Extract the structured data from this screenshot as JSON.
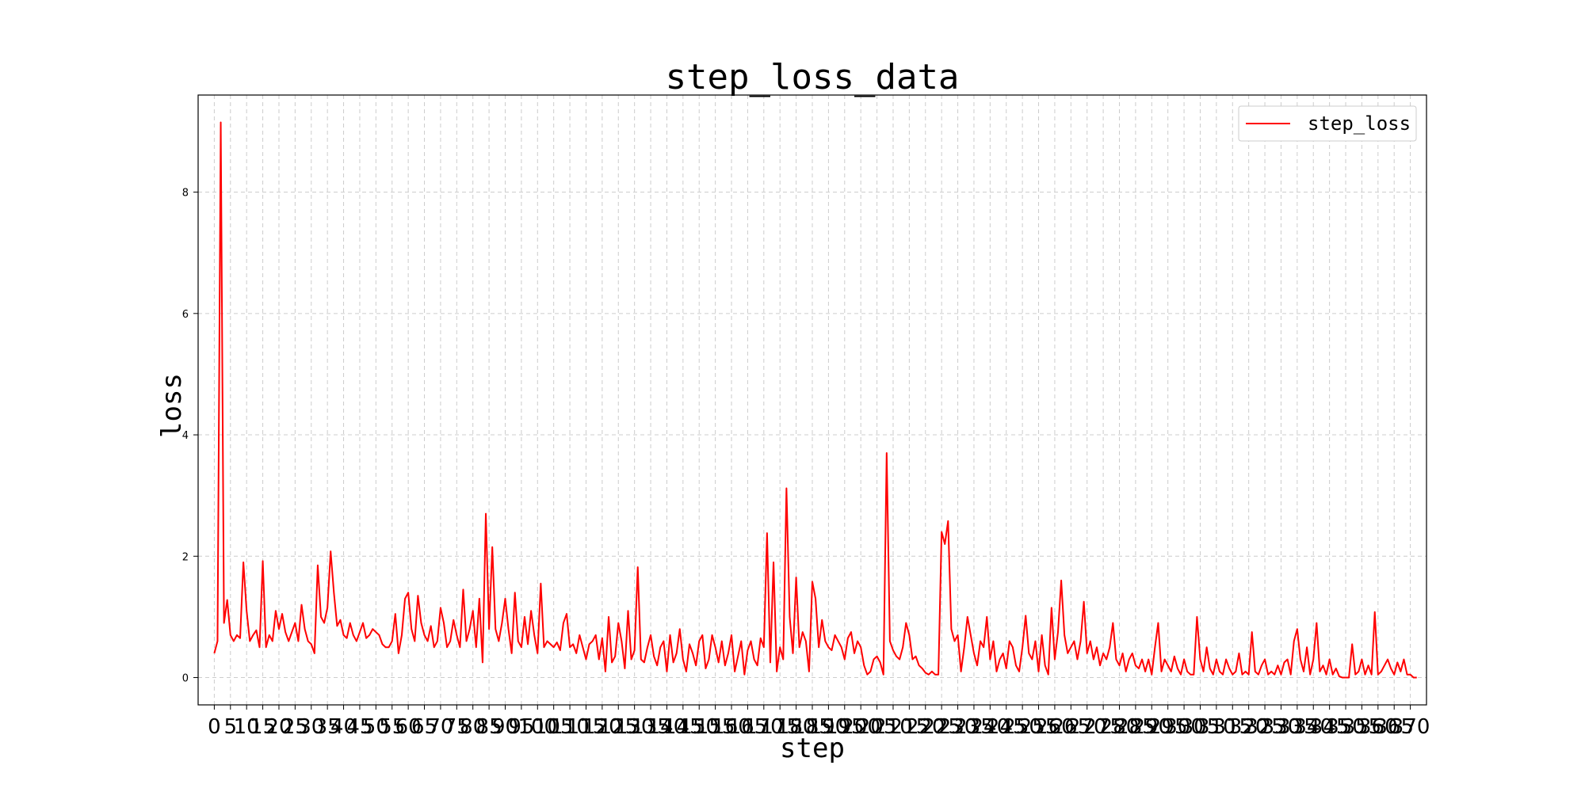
{
  "chart_data": {
    "type": "line",
    "title": "step_loss_data",
    "xlabel": "step",
    "ylabel": "loss",
    "xlim": [
      -5,
      375
    ],
    "ylim": [
      -0.45,
      9.6
    ],
    "yticks": [
      0,
      2,
      4,
      6,
      8
    ],
    "x_tick_step": 5,
    "x_tick_max": 370,
    "grid": true,
    "legend_position": "top-right",
    "colors": {
      "series": "#ff0000",
      "grid": "#cccccc",
      "axes": "#000000"
    },
    "series": [
      {
        "name": "step_loss",
        "values": [
          0.4,
          0.6,
          9.15,
          0.9,
          1.28,
          0.7,
          0.6,
          0.7,
          0.65,
          1.9,
          1.1,
          0.6,
          0.7,
          0.78,
          0.5,
          1.92,
          0.5,
          0.7,
          0.6,
          1.1,
          0.8,
          1.05,
          0.75,
          0.6,
          0.75,
          0.9,
          0.6,
          1.2,
          0.8,
          0.6,
          0.55,
          0.4,
          1.85,
          1.0,
          0.9,
          1.15,
          2.08,
          1.4,
          0.85,
          0.95,
          0.7,
          0.65,
          0.9,
          0.7,
          0.6,
          0.75,
          0.9,
          0.65,
          0.7,
          0.8,
          0.75,
          0.7,
          0.55,
          0.5,
          0.5,
          0.6,
          1.05,
          0.4,
          0.7,
          1.3,
          1.4,
          0.8,
          0.6,
          1.35,
          0.9,
          0.7,
          0.6,
          0.85,
          0.5,
          0.6,
          1.15,
          0.9,
          0.5,
          0.6,
          0.95,
          0.7,
          0.5,
          1.45,
          0.6,
          0.8,
          1.1,
          0.5,
          1.3,
          0.25,
          2.7,
          0.8,
          2.15,
          0.8,
          0.6,
          0.9,
          1.3,
          0.8,
          0.4,
          1.4,
          0.6,
          0.5,
          1.0,
          0.55,
          1.1,
          0.7,
          0.4,
          1.55,
          0.5,
          0.6,
          0.55,
          0.5,
          0.58,
          0.45,
          0.9,
          1.05,
          0.5,
          0.55,
          0.4,
          0.7,
          0.5,
          0.3,
          0.55,
          0.6,
          0.7,
          0.3,
          0.65,
          0.1,
          1.0,
          0.25,
          0.35,
          0.9,
          0.6,
          0.15,
          1.1,
          0.3,
          0.45,
          1.82,
          0.3,
          0.25,
          0.5,
          0.7,
          0.35,
          0.2,
          0.5,
          0.6,
          0.1,
          0.7,
          0.25,
          0.4,
          0.8,
          0.3,
          0.1,
          0.55,
          0.4,
          0.2,
          0.6,
          0.7,
          0.15,
          0.3,
          0.7,
          0.5,
          0.25,
          0.6,
          0.2,
          0.4,
          0.7,
          0.1,
          0.35,
          0.6,
          0.05,
          0.45,
          0.6,
          0.3,
          0.2,
          0.65,
          0.5,
          2.38,
          0.25,
          1.9,
          0.1,
          0.5,
          0.3,
          3.12,
          1.0,
          0.4,
          1.65,
          0.5,
          0.75,
          0.6,
          0.1,
          1.58,
          1.3,
          0.5,
          0.95,
          0.6,
          0.5,
          0.45,
          0.7,
          0.6,
          0.5,
          0.3,
          0.65,
          0.75,
          0.4,
          0.6,
          0.5,
          0.2,
          0.05,
          0.1,
          0.3,
          0.35,
          0.25,
          0.05,
          3.7,
          0.6,
          0.45,
          0.35,
          0.3,
          0.5,
          0.9,
          0.7,
          0.3,
          0.35,
          0.2,
          0.15,
          0.08,
          0.05,
          0.1,
          0.05,
          0.05,
          2.4,
          2.2,
          2.58,
          0.8,
          0.6,
          0.7,
          0.1,
          0.5,
          1.0,
          0.7,
          0.4,
          0.2,
          0.6,
          0.5,
          1.0,
          0.3,
          0.6,
          0.1,
          0.3,
          0.4,
          0.15,
          0.6,
          0.5,
          0.2,
          0.1,
          0.5,
          1.02,
          0.4,
          0.3,
          0.6,
          0.1,
          0.7,
          0.2,
          0.05,
          1.15,
          0.3,
          0.75,
          1.6,
          0.7,
          0.4,
          0.5,
          0.6,
          0.3,
          0.6,
          1.25,
          0.4,
          0.6,
          0.3,
          0.5,
          0.2,
          0.4,
          0.3,
          0.5,
          0.9,
          0.3,
          0.2,
          0.4,
          0.1,
          0.3,
          0.4,
          0.2,
          0.15,
          0.3,
          0.1,
          0.3,
          0.05,
          0.5,
          0.9,
          0.1,
          0.3,
          0.2,
          0.1,
          0.35,
          0.15,
          0.05,
          0.3,
          0.1,
          0.05,
          0.05,
          1.0,
          0.3,
          0.1,
          0.5,
          0.15,
          0.05,
          0.3,
          0.1,
          0.05,
          0.3,
          0.15,
          0.05,
          0.1,
          0.4,
          0.05,
          0.1,
          0.05,
          0.75,
          0.1,
          0.05,
          0.2,
          0.3,
          0.05,
          0.1,
          0.05,
          0.2,
          0.05,
          0.25,
          0.3,
          0.05,
          0.6,
          0.8,
          0.3,
          0.1,
          0.5,
          0.05,
          0.3,
          0.9,
          0.1,
          0.2,
          0.05,
          0.3,
          0.05,
          0.15,
          0.02,
          0.0,
          0.0,
          0.0,
          0.55,
          0.05,
          0.1,
          0.3,
          0.05,
          0.2,
          0.05,
          1.08,
          0.05,
          0.1,
          0.2,
          0.3,
          0.15,
          0.05,
          0.25,
          0.1,
          0.3,
          0.05,
          0.05,
          0.0,
          0.0
        ]
      }
    ]
  }
}
